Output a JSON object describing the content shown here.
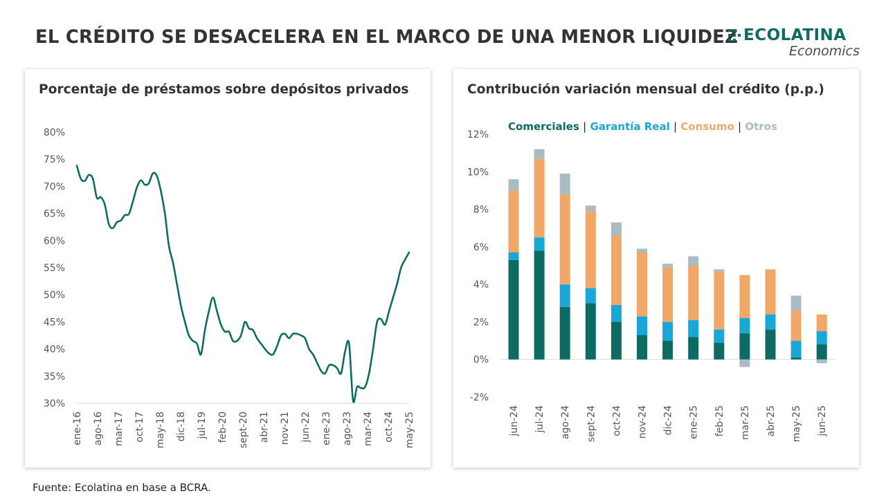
{
  "header": {
    "title": "EL CRÉDITO SE DESACELERA EN EL MARCO DE UNA MENOR LIQUIDEZ",
    "logo_name": "ECOLATINA",
    "logo_sub": "Economics"
  },
  "source": "Fuente: Ecolatina en base a BCRA.",
  "colors": {
    "comerciales": "#0e6b63",
    "garantia_real": "#1aa6d6",
    "consumo": "#f0a868",
    "otros": "#a8bcc2",
    "line": "#0e6b63"
  },
  "legend": {
    "comerciales": "Comerciales",
    "garantia_real": "Garantía Real",
    "consumo": "Consumo",
    "otros": "Otros",
    "separator": "|"
  },
  "chart_data": [
    {
      "type": "line",
      "title": "Porcentaje de préstamos sobre depósitos privados",
      "xlabel": "",
      "ylabel": "",
      "ylim": [
        30,
        80
      ],
      "yticks": [
        "30%",
        "35%",
        "40%",
        "45%",
        "50%",
        "55%",
        "60%",
        "65%",
        "70%",
        "75%",
        "80%"
      ],
      "xticks": [
        "ene-16",
        "ago-16",
        "mar-17",
        "oct-17",
        "may-18",
        "dic-18",
        "jul-19",
        "feb-20",
        "sept-20",
        "abr-21",
        "nov-21",
        "jun-22",
        "ene-23",
        "ago-23",
        "mar-24",
        "oct-24",
        "may-25"
      ],
      "grid": false,
      "series": [
        {
          "values": [
            73.8,
            71.4,
            71.0,
            72.1,
            71.4,
            67.9,
            68.0,
            66.6,
            63.0,
            62.3,
            63.4,
            63.7,
            64.7,
            64.9,
            67.2,
            69.8,
            71.1,
            70.3,
            70.6,
            72.4,
            71.9,
            69.1,
            65.0,
            59.0,
            56.0,
            52.0,
            48.0,
            45.0,
            42.5,
            41.5,
            41.0,
            39.0,
            43.5,
            47.0,
            49.5,
            47.0,
            44.5,
            43.2,
            43.2,
            41.5,
            41.5,
            42.5,
            45.0,
            43.8,
            43.5,
            42.0,
            41.0,
            40.0,
            39.2,
            39.0,
            40.5,
            42.5,
            42.8,
            42.0,
            42.8,
            42.8,
            42.5,
            42.0,
            40.0,
            39.0,
            37.5,
            36.0,
            35.5,
            37.0,
            37.0,
            36.5,
            35.5,
            39.5,
            41.0,
            30.5,
            33.0,
            32.8,
            33.0,
            35.5,
            40.0,
            45.0,
            45.5,
            44.5,
            47.0,
            49.5,
            52.0,
            55.0,
            56.5,
            57.8
          ]
        }
      ]
    },
    {
      "type": "bar",
      "stacked": true,
      "title": "Contribución variación mensual del crédito (p.p.)",
      "xlabel": "",
      "ylabel": "",
      "ylim": [
        -2,
        12
      ],
      "yticks": [
        "-2%",
        "0%",
        "2%",
        "4%",
        "6%",
        "8%",
        "10%",
        "12%"
      ],
      "grid": false,
      "legend_position": "top",
      "categories": [
        "jun-24",
        "jul-24",
        "ago-24",
        "sept-24",
        "oct-24",
        "nov-24",
        "dic-24",
        "ene-25",
        "feb-25",
        "mar-25",
        "abr-25",
        "may-25",
        "jun-25"
      ],
      "series": [
        {
          "name": "Comerciales",
          "values": [
            5.3,
            5.8,
            2.8,
            3.0,
            2.0,
            1.3,
            1.0,
            1.2,
            0.9,
            1.4,
            1.6,
            0.1,
            0.8
          ]
        },
        {
          "name": "Garantía Real",
          "values": [
            0.4,
            0.7,
            1.2,
            0.8,
            0.9,
            1.0,
            1.0,
            0.9,
            0.7,
            0.8,
            0.8,
            0.9,
            0.7
          ]
        },
        {
          "name": "Consumo",
          "values": [
            3.3,
            4.2,
            4.8,
            4.1,
            3.7,
            3.4,
            2.9,
            2.9,
            3.1,
            2.3,
            2.4,
            1.6,
            0.9
          ]
        },
        {
          "name": "Otros",
          "values": [
            0.6,
            0.5,
            1.1,
            0.3,
            0.7,
            0.2,
            0.2,
            0.5,
            0.1,
            -0.4,
            0.0,
            0.8,
            -0.2
          ]
        }
      ]
    }
  ]
}
